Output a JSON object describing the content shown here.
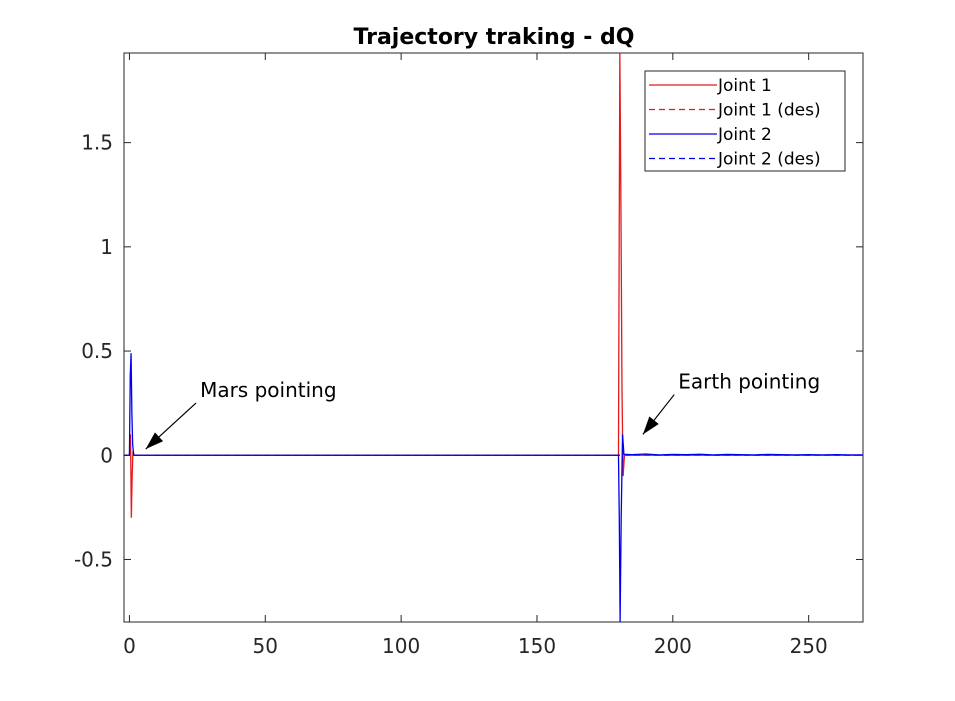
{
  "chart_data": {
    "type": "line",
    "title": "Trajectory traking - dQ",
    "xlabel": "",
    "ylabel": "",
    "xlim": [
      -2,
      270
    ],
    "ylim": [
      -0.8,
      1.93
    ],
    "xticks": [
      0,
      50,
      100,
      150,
      200,
      250
    ],
    "yticks": [
      -0.5,
      0,
      0.5,
      1,
      1.5
    ],
    "xtick_labels": [
      "0",
      "50",
      "100",
      "150",
      "200",
      "250"
    ],
    "ytick_labels": [
      "-0.5",
      "0",
      "0.5",
      "1",
      "1.5"
    ],
    "grid": false,
    "legend_position": "top-right",
    "series": [
      {
        "name": "Joint 1",
        "color": "#e41a1c",
        "style": "solid",
        "x": [
          -2,
          0,
          0.4,
          0.7,
          1.0,
          1.3,
          1.6,
          2.0,
          180,
          180.2,
          180.5,
          180.9,
          181.3,
          181.7,
          182.2,
          270
        ],
        "y": [
          0,
          0,
          0.1,
          -0.3,
          -0.1,
          0.02,
          0,
          0,
          0,
          0.8,
          1.93,
          1.2,
          0.3,
          -0.1,
          0,
          0
        ]
      },
      {
        "name": "Joint 1 (des)",
        "color": "#e41a1c",
        "style": "dashed",
        "x": [
          -2,
          270
        ],
        "y": [
          0,
          0
        ]
      },
      {
        "name": "Joint 2",
        "color": "#0000ee",
        "style": "solid",
        "x": [
          -2,
          0,
          0.3,
          0.6,
          0.9,
          1.2,
          1.6,
          2.0,
          179.5,
          180,
          180.3,
          180.6,
          181.0,
          181.5,
          182.0,
          185,
          190,
          195,
          200,
          205,
          210,
          215,
          220,
          225,
          230,
          235,
          240,
          245,
          250,
          255,
          260,
          265,
          270
        ],
        "y": [
          0,
          0,
          0.38,
          0.49,
          0.2,
          0.05,
          0,
          0,
          0,
          0,
          -0.3,
          -0.8,
          -0.3,
          0.1,
          0.005,
          0.003,
          0.006,
          0.002,
          0.004,
          0.003,
          0.005,
          0.002,
          0.004,
          0.003,
          0.002,
          0.004,
          0.003,
          0.002,
          0.003,
          0.002,
          0.003,
          0.002,
          0.002
        ]
      },
      {
        "name": "Joint 2 (des)",
        "color": "#0000ee",
        "style": "dashed",
        "x": [
          -2,
          270
        ],
        "y": [
          0,
          0
        ]
      }
    ],
    "annotations": [
      {
        "text": "Mars pointing",
        "text_x": 26,
        "text_y": 0.28,
        "arrow_to_x": 6,
        "arrow_to_y": 0.03
      },
      {
        "text": "Earth pointing",
        "text_x": 202,
        "text_y": 0.32,
        "arrow_to_x": 189,
        "arrow_to_y": 0.1
      }
    ]
  }
}
